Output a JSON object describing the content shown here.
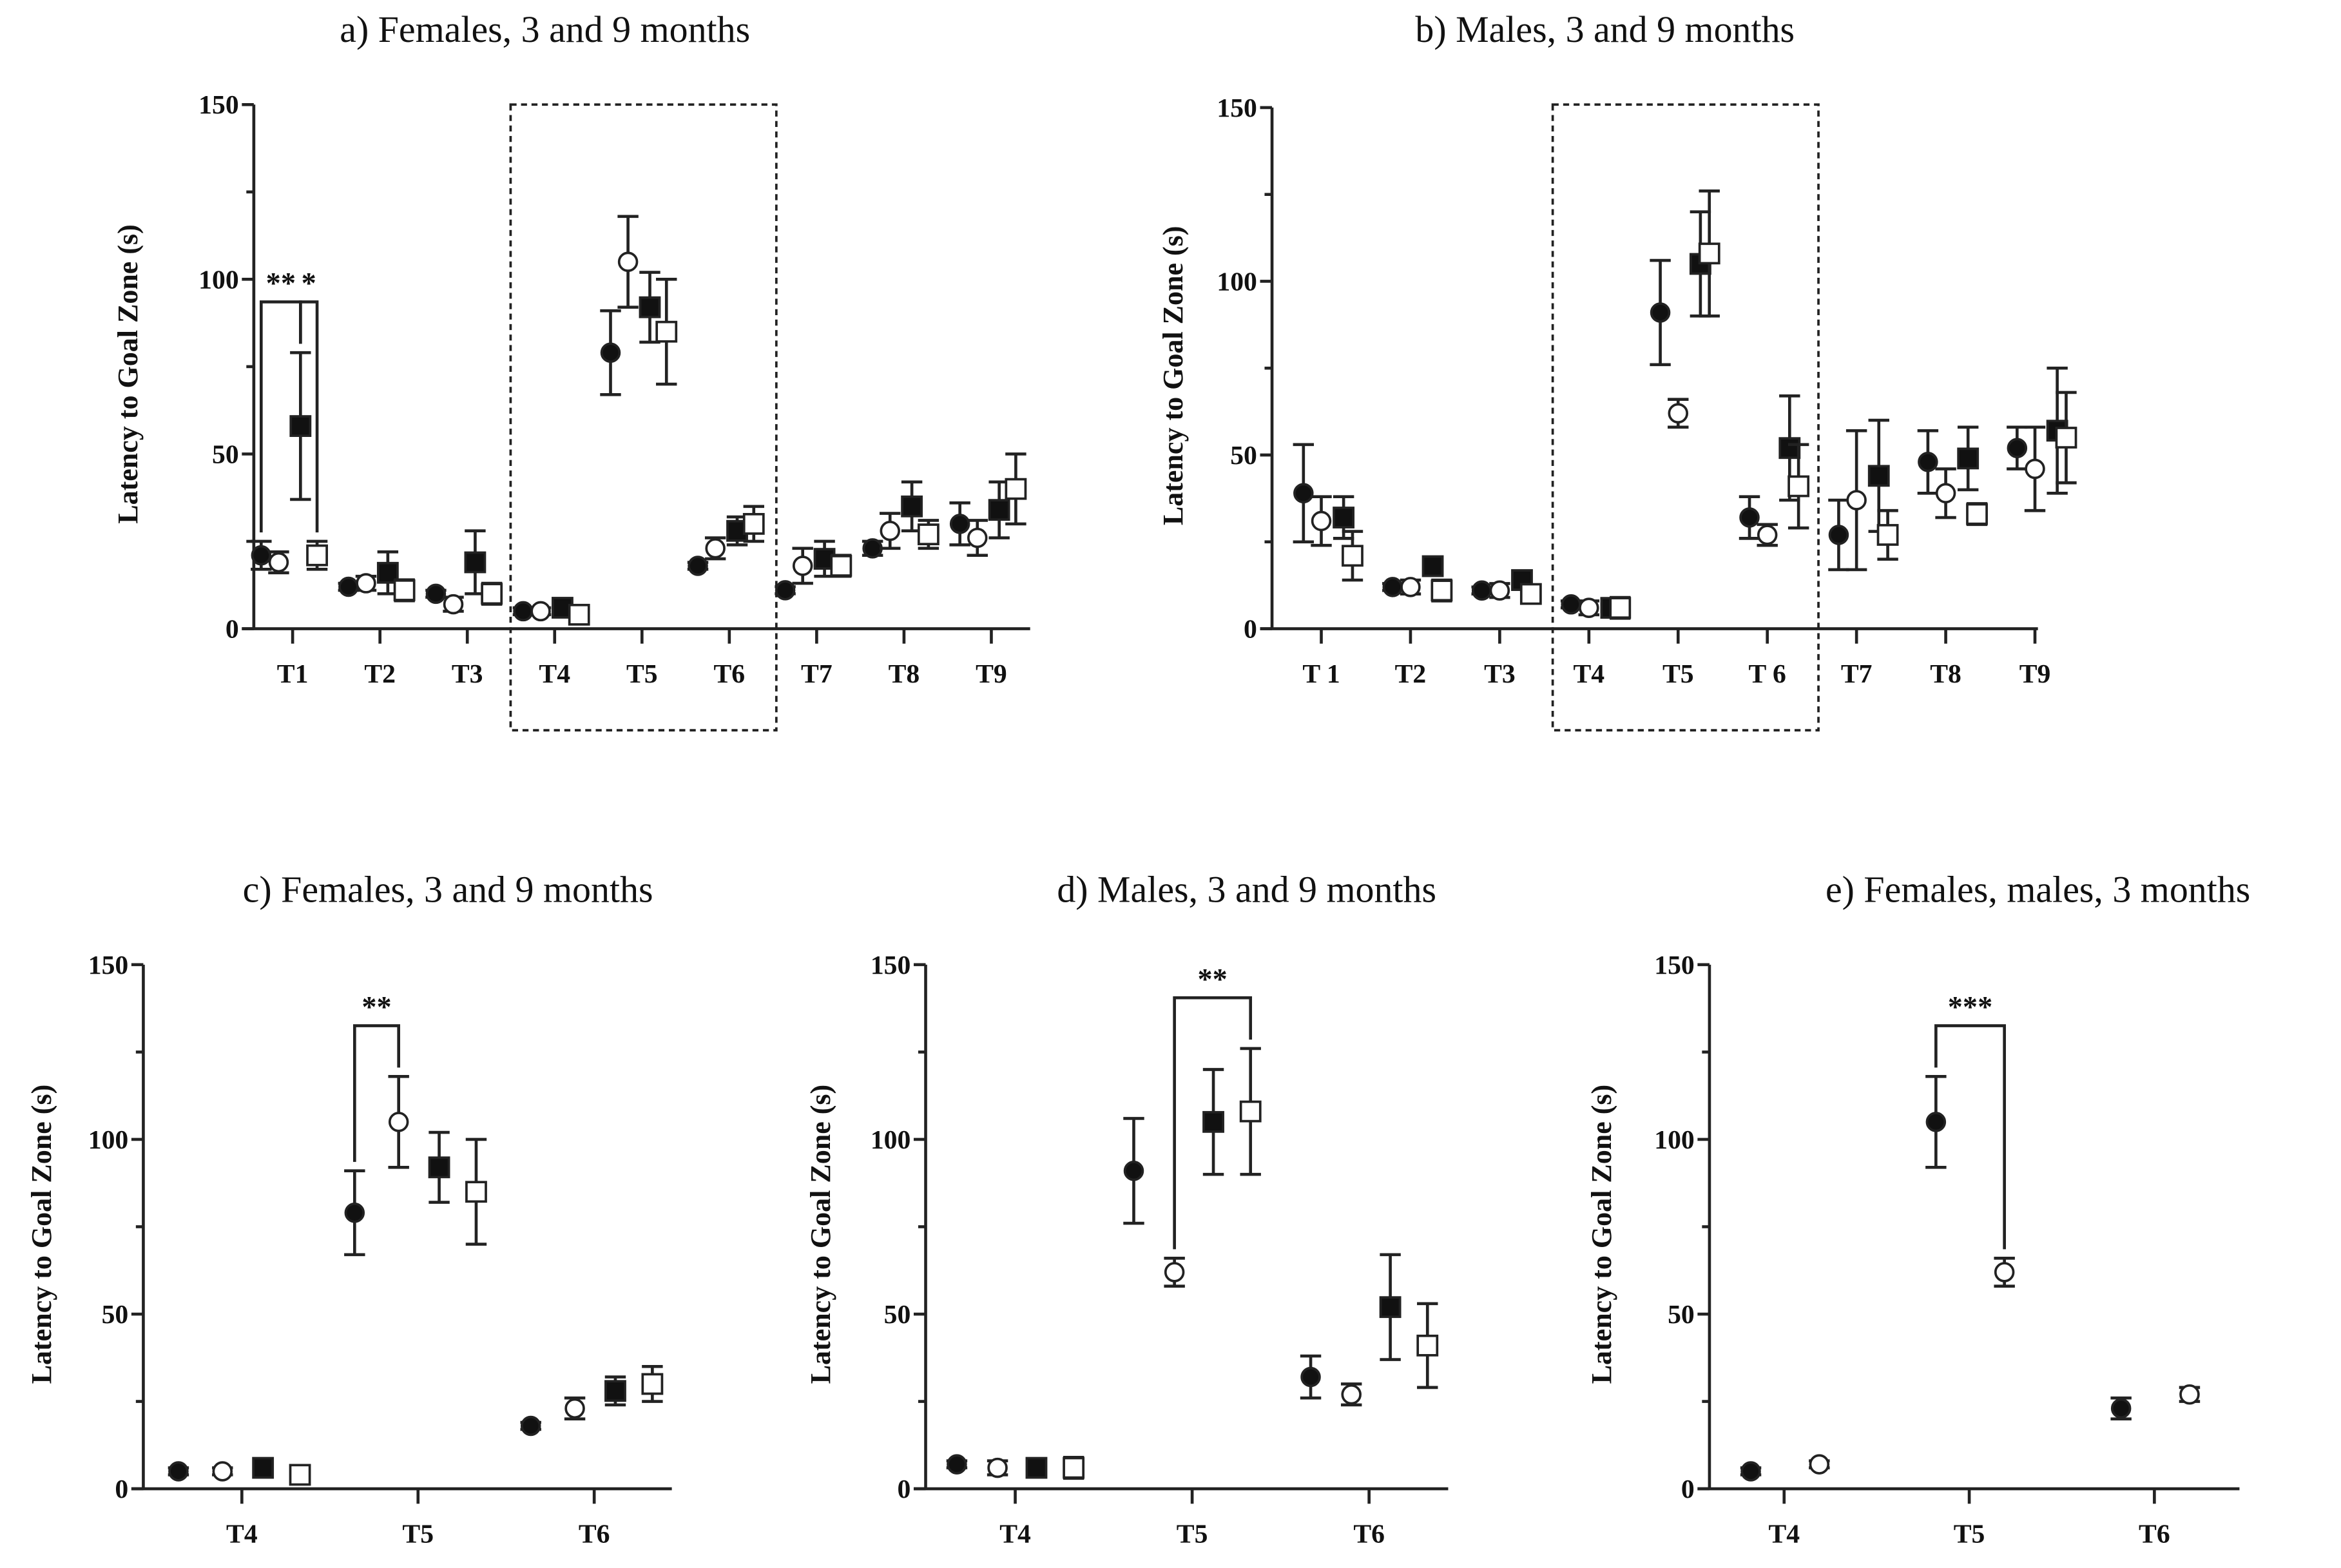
{
  "chart_data": [
    {
      "id": "a",
      "type": "scatter",
      "title": "a) Females, 3 and 9 months",
      "ylabel": "Latency to Goal Zone (s)",
      "ylim": [
        0,
        150
      ],
      "yticks": [
        0,
        50,
        100,
        150
      ],
      "categories": [
        "T1",
        "T2",
        "T3",
        "T4",
        "T5",
        "T6",
        "T7",
        "T8",
        "T9"
      ],
      "highlight_categories": [
        "T4",
        "T6"
      ],
      "series": [
        {
          "marker": "filled-circle",
          "mean": [
            21,
            12,
            10,
            5,
            79,
            18,
            11,
            23,
            30
          ],
          "err": [
            4,
            1,
            1,
            1,
            12,
            1,
            1,
            2,
            6
          ]
        },
        {
          "marker": "open-circle",
          "mean": [
            19,
            13,
            7,
            5,
            105,
            23,
            18,
            28,
            26
          ],
          "err": [
            3,
            2,
            2,
            1,
            13,
            3,
            5,
            5,
            5
          ]
        },
        {
          "marker": "filled-square",
          "mean": [
            58,
            16,
            19,
            6,
            92,
            28,
            20,
            35,
            34
          ],
          "err": [
            21,
            6,
            9,
            1,
            10,
            4,
            5,
            7,
            8
          ]
        },
        {
          "marker": "open-square",
          "mean": [
            21,
            11,
            10,
            4,
            85,
            30,
            18,
            27,
            40
          ],
          "err": [
            4,
            3,
            3,
            2,
            15,
            5,
            3,
            4,
            10
          ]
        }
      ],
      "annotations": [
        {
          "category": "T1",
          "from": 0,
          "to": 2,
          "label": "**"
        },
        {
          "category": "T1",
          "from": 2,
          "to": 3,
          "label": "*"
        }
      ]
    },
    {
      "id": "b",
      "type": "scatter",
      "title": "b) Males, 3 and 9 months",
      "ylabel": "Latency to Goal Zone (s)",
      "ylim": [
        0,
        150
      ],
      "yticks": [
        0,
        50,
        100,
        150
      ],
      "categories": [
        "T 1",
        "T2",
        "T3",
        "T4",
        "T5",
        "T 6",
        "T7",
        "T8",
        "T9"
      ],
      "highlight_categories": [
        "T4",
        "T 6"
      ],
      "series": [
        {
          "marker": "filled-circle",
          "mean": [
            39,
            12,
            11,
            7,
            91,
            32,
            27,
            48,
            52
          ],
          "err": [
            14,
            1,
            1,
            1,
            15,
            6,
            10,
            9,
            6
          ]
        },
        {
          "marker": "open-circle",
          "mean": [
            31,
            12,
            11,
            6,
            62,
            27,
            37,
            39,
            46
          ],
          "err": [
            7,
            2,
            2,
            2,
            4,
            3,
            20,
            7,
            12
          ]
        },
        {
          "marker": "filled-square",
          "mean": [
            32,
            18,
            14,
            6,
            105,
            52,
            44,
            49,
            57
          ],
          "err": [
            6,
            2,
            2,
            1,
            15,
            15,
            16,
            9,
            18
          ]
        },
        {
          "marker": "open-square",
          "mean": [
            21,
            11,
            10,
            6,
            108,
            41,
            27,
            33,
            55
          ],
          "err": [
            7,
            3,
            2,
            3,
            18,
            12,
            7,
            3,
            13
          ]
        }
      ],
      "annotations": []
    },
    {
      "id": "c",
      "type": "scatter",
      "title": "c) Females, 3 and 9 months",
      "ylabel": "Latency to Goal Zone (s)",
      "ylim": [
        0,
        150
      ],
      "yticks": [
        0,
        50,
        100,
        150
      ],
      "categories": [
        "T4",
        "T5",
        "T6"
      ],
      "series": [
        {
          "marker": "filled-circle",
          "mean": [
            5,
            79,
            18
          ],
          "err": [
            1,
            12,
            1
          ]
        },
        {
          "marker": "open-circle",
          "mean": [
            5,
            105,
            23
          ],
          "err": [
            1,
            13,
            3
          ]
        },
        {
          "marker": "filled-square",
          "mean": [
            6,
            92,
            28
          ],
          "err": [
            1,
            10,
            4
          ]
        },
        {
          "marker": "open-square",
          "mean": [
            4,
            85,
            30
          ],
          "err": [
            2,
            15,
            5
          ]
        }
      ],
      "annotations": [
        {
          "category": "T5",
          "from": 0,
          "to": 1,
          "label": "**"
        }
      ]
    },
    {
      "id": "d",
      "type": "scatter",
      "title": "d) Males, 3 and 9 months",
      "ylabel": "Latency to Goal Zone (s)",
      "ylim": [
        0,
        150
      ],
      "yticks": [
        0,
        50,
        100,
        150
      ],
      "categories": [
        "T4",
        "T5",
        "T6"
      ],
      "series": [
        {
          "marker": "filled-circle",
          "mean": [
            7,
            91,
            32
          ],
          "err": [
            1,
            15,
            6
          ]
        },
        {
          "marker": "open-circle",
          "mean": [
            6,
            62,
            27
          ],
          "err": [
            2,
            4,
            3
          ]
        },
        {
          "marker": "filled-square",
          "mean": [
            6,
            105,
            52
          ],
          "err": [
            1,
            15,
            15
          ]
        },
        {
          "marker": "open-square",
          "mean": [
            6,
            108,
            41
          ],
          "err": [
            3,
            18,
            12
          ]
        }
      ],
      "annotations": [
        {
          "category": "T5",
          "from": 1,
          "to": 3,
          "label": "**"
        }
      ]
    },
    {
      "id": "e",
      "type": "scatter",
      "title": "e) Females, males, 3 months",
      "ylabel": "Latency to Goal Zone (s)",
      "ylim": [
        0,
        150
      ],
      "yticks": [
        0,
        50,
        100,
        150
      ],
      "categories": [
        "T4",
        "T5",
        "T6"
      ],
      "series": [
        {
          "marker": "filled-circle",
          "mean": [
            5,
            105,
            23
          ],
          "err": [
            1,
            13,
            3
          ]
        },
        {
          "marker": "open-circle",
          "mean": [
            7,
            62,
            27
          ],
          "err": [
            1,
            4,
            2
          ]
        }
      ],
      "annotations": [
        {
          "category": "T5",
          "from": 0,
          "to": 1,
          "label": "***"
        }
      ]
    }
  ]
}
